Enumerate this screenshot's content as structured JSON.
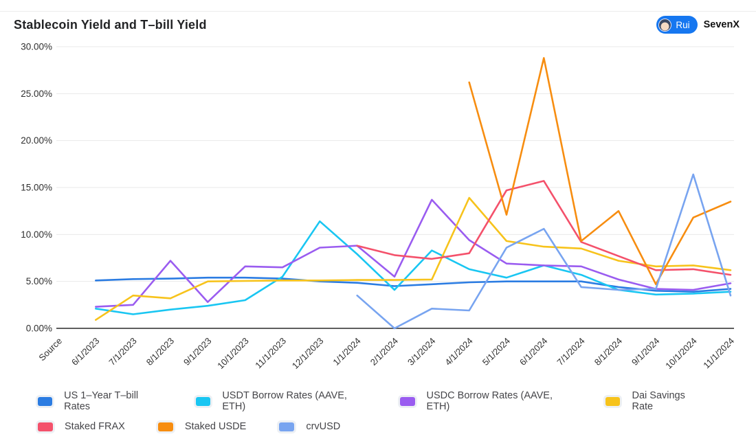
{
  "page": {
    "title": "Stablecoin Yield and T–bill Yield",
    "badge": {
      "author": "Rui",
      "org": "SevenX"
    }
  },
  "chart_data": {
    "type": "line",
    "title": "Stablecoin Yield and T–bill Yield",
    "xlabel": "",
    "ylabel": "",
    "grid": true,
    "legend_position": "bottom",
    "y_axis": {
      "min": 0,
      "max": 30,
      "step": 5,
      "labels": [
        "0.00%",
        "5.00%",
        "10.00%",
        "15.00%",
        "20.00%",
        "25.00%",
        "30.00%"
      ]
    },
    "categories": [
      "Source",
      "6/1/2023",
      "7/1/2023",
      "8/1/2023",
      "9/1/2023",
      "10/1/2023",
      "11/1/2023",
      "12/1/2023",
      "1/1/2024",
      "2/1/2024",
      "3/1/2024",
      "4/1/2024",
      "5/1/2024",
      "6/1/2024",
      "7/1/2024",
      "8/1/2024",
      "9/1/2024",
      "10/1/2024",
      "11/1/2024"
    ],
    "series": [
      {
        "name": "US 1–Year T–bill Rates",
        "color": "#2b7ce2",
        "values": [
          null,
          5.1,
          5.25,
          5.3,
          5.4,
          5.4,
          5.3,
          5.0,
          4.85,
          4.5,
          4.7,
          4.9,
          5.0,
          5.0,
          5.0,
          4.4,
          4.0,
          3.9,
          4.2
        ]
      },
      {
        "name": "USDT Borrow Rates (AAVE, ETH)",
        "color": "#19c6f2",
        "values": [
          null,
          2.1,
          1.5,
          2.0,
          2.4,
          3.0,
          5.5,
          11.4,
          7.9,
          4.1,
          8.3,
          6.3,
          5.4,
          6.7,
          5.7,
          4.1,
          3.6,
          3.7,
          3.9
        ]
      },
      {
        "name": "USDC Borrow Rates (AAVE, ETH)",
        "color": "#9a5cf0",
        "values": [
          null,
          2.3,
          2.5,
          7.2,
          2.8,
          6.6,
          6.5,
          8.6,
          8.8,
          5.5,
          13.7,
          9.4,
          6.9,
          6.7,
          6.6,
          5.2,
          4.2,
          4.1,
          4.8
        ]
      },
      {
        "name": "Dai Savings Rate",
        "color": "#f7c31b",
        "values": [
          null,
          0.9,
          3.5,
          3.2,
          5.0,
          5.05,
          5.1,
          5.1,
          5.15,
          5.15,
          5.2,
          13.9,
          9.3,
          8.7,
          8.5,
          7.2,
          6.6,
          6.7,
          6.2
        ]
      },
      {
        "name": "Staked FRAX",
        "color": "#f4516b",
        "values": [
          null,
          null,
          null,
          null,
          null,
          null,
          null,
          null,
          8.8,
          7.8,
          7.4,
          8.0,
          14.7,
          15.7,
          9.2,
          7.7,
          6.2,
          6.3,
          5.7
        ]
      },
      {
        "name": "Staked USDE",
        "color": "#f78d10",
        "values": [
          null,
          null,
          null,
          null,
          null,
          null,
          null,
          null,
          null,
          null,
          null,
          26.2,
          12.1,
          28.8,
          9.3,
          12.5,
          4.7,
          11.8,
          13.5
        ]
      },
      {
        "name": "crvUSD",
        "color": "#78a4f0",
        "values": [
          null,
          null,
          null,
          null,
          null,
          null,
          null,
          null,
          3.5,
          0.0,
          2.1,
          1.9,
          8.6,
          10.6,
          4.4,
          4.1,
          4.2,
          16.4,
          3.5
        ]
      }
    ],
    "style": {
      "grid_color": "#e9e9e9",
      "axis_color": "#5e5e5e",
      "tick_color": "#2f2f2f"
    }
  }
}
